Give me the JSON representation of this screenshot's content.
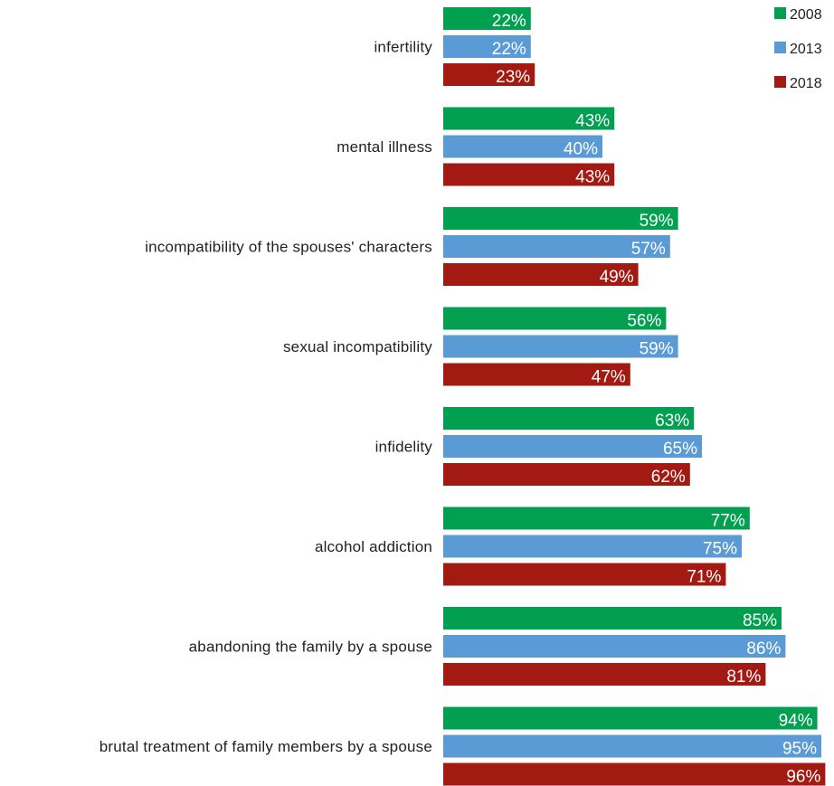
{
  "chart_data": {
    "type": "bar",
    "orientation": "horizontal",
    "categories": [
      "infertility",
      "mental illness",
      "incompatibility of the spouses' characters",
      "sexual incompatibility",
      "infidelity",
      "alcohol addiction",
      "abandoning the family by a spouse",
      "brutal treatment of family members by a spouse"
    ],
    "series": [
      {
        "name": "2008",
        "color": "#00A050",
        "values": [
          22,
          43,
          59,
          56,
          63,
          77,
          85,
          94
        ]
      },
      {
        "name": "2013",
        "color": "#5B9BD5",
        "values": [
          22,
          40,
          57,
          59,
          65,
          75,
          86,
          95
        ]
      },
      {
        "name": "2018",
        "color": "#A31A12",
        "values": [
          23,
          43,
          49,
          47,
          62,
          71,
          81,
          96
        ]
      }
    ],
    "value_suffix": "%",
    "xlim": [
      0,
      100
    ],
    "grid": false,
    "legend_position": "top-right"
  }
}
